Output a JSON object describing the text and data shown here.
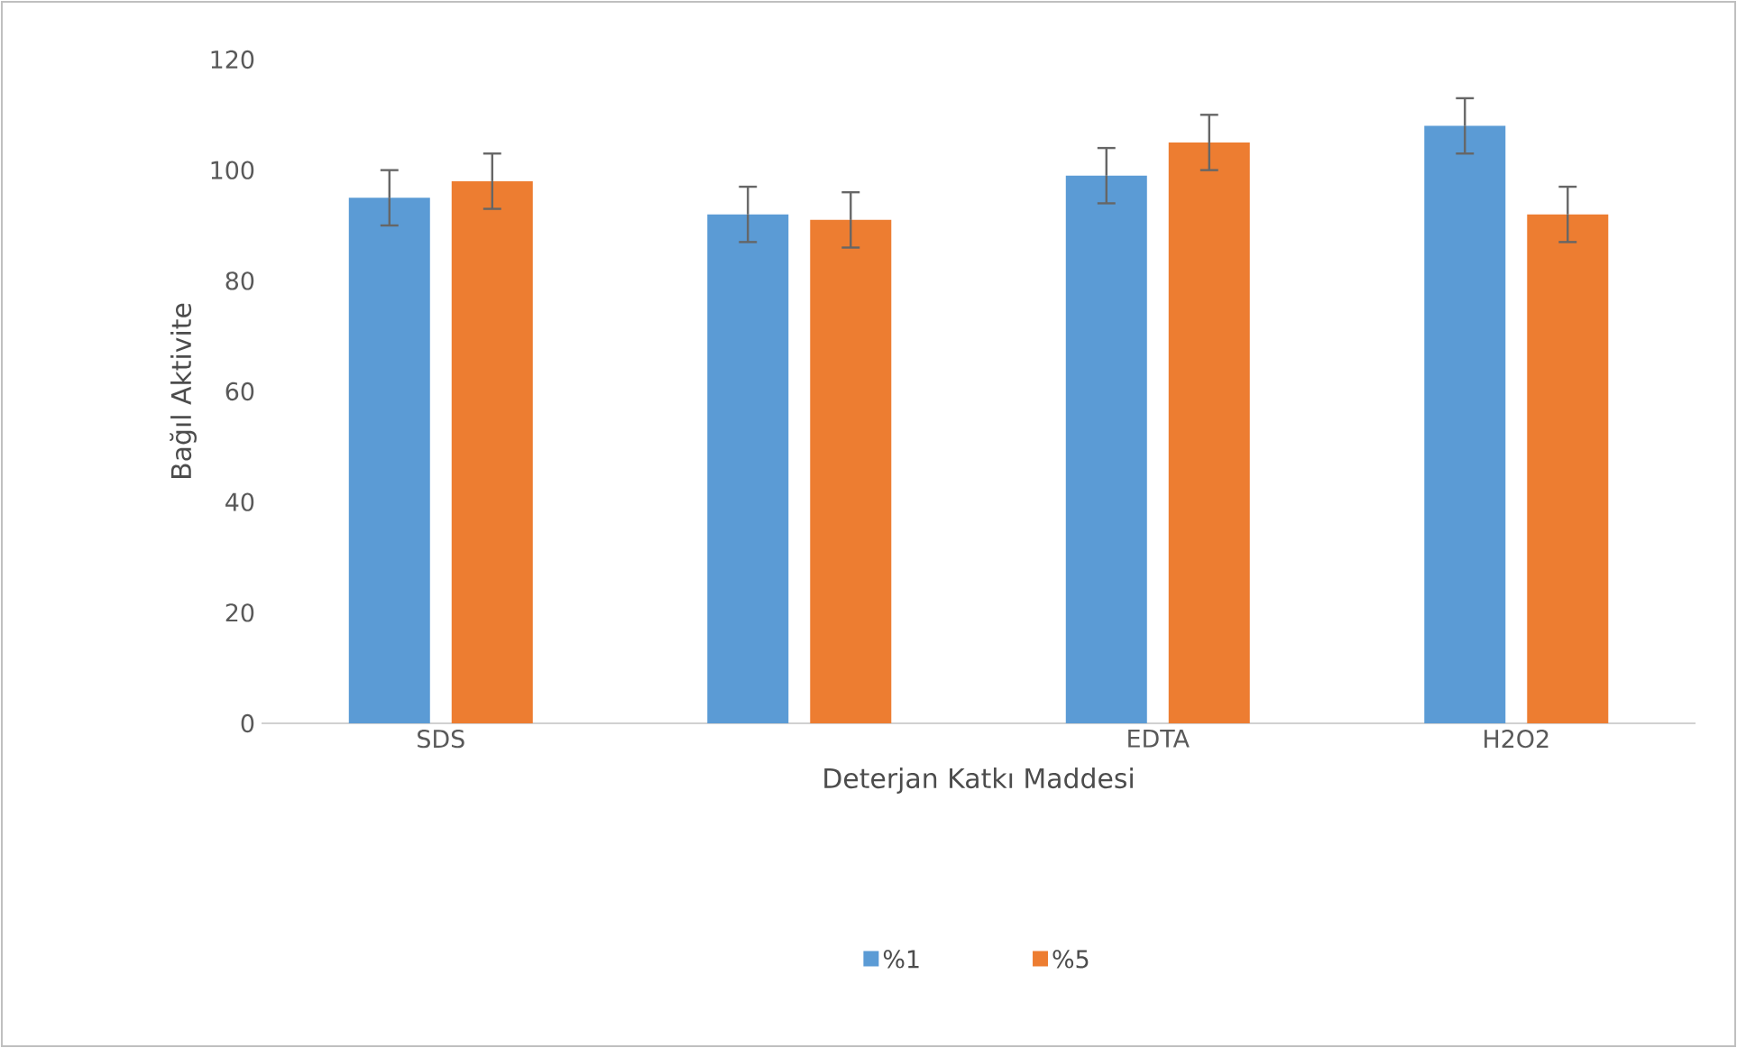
{
  "chart_data": {
    "type": "bar",
    "xlabel": "Deterjan Katkı Maddesi",
    "ylabel": "Bağıl Aktivite",
    "categories": [
      "SDS",
      null,
      "EDTA",
      "H2O2"
    ],
    "series": [
      {
        "name": "%1",
        "color": "#5b9bd5",
        "values": [
          95,
          92,
          99,
          108
        ],
        "errors": [
          5,
          5,
          5,
          5
        ]
      },
      {
        "name": "%5",
        "color": "#ed7d31",
        "values": [
          98,
          91,
          105,
          92
        ],
        "errors": [
          5,
          5,
          5,
          5
        ]
      }
    ],
    "ylim": [
      0,
      120
    ],
    "yticks": [
      0,
      20,
      40,
      60,
      80,
      100,
      120
    ],
    "legend": "bottom"
  }
}
